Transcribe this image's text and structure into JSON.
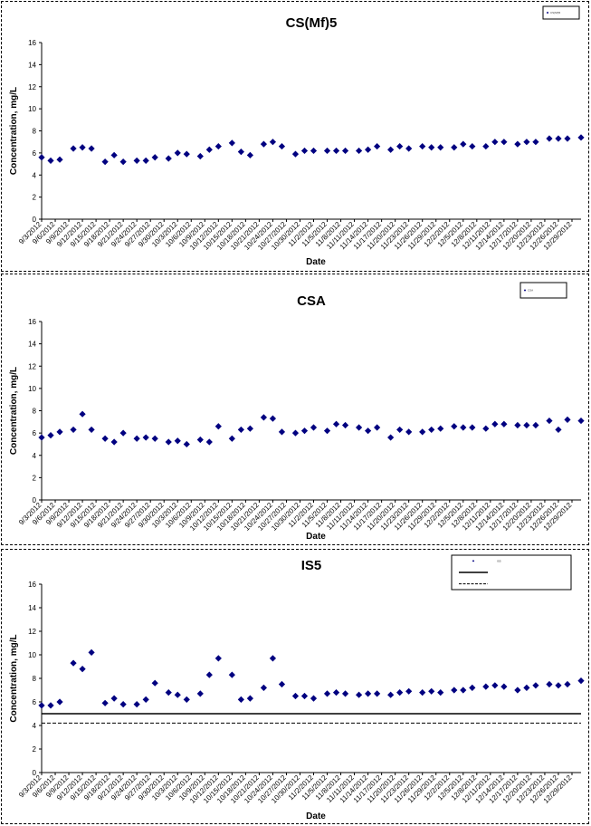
{
  "chart_data": [
    {
      "type": "scatter",
      "title": "CS(Mf)5",
      "xlabel": "Date",
      "ylabel": "Concentration, mg/L",
      "ylim": [
        0,
        16
      ],
      "yticks": [
        0,
        2,
        4,
        6,
        8,
        10,
        12,
        14,
        16
      ],
      "x_tick_labels": [
        "9/3/2012",
        "9/6/2012",
        "9/9/2012",
        "9/12/2012",
        "9/15/2012",
        "9/18/2012",
        "9/21/2012",
        "9/24/2012",
        "9/27/2012",
        "9/30/2012",
        "10/3/2012",
        "10/6/2012",
        "10/9/2012",
        "10/12/2012",
        "10/15/2012",
        "10/18/2012",
        "10/21/2012",
        "10/24/2012",
        "10/27/2012",
        "10/30/2012",
        "11/2/2012",
        "11/5/2012",
        "11/8/2012",
        "11/11/2012",
        "11/14/2012",
        "11/17/2012",
        "11/20/2012",
        "11/23/2012",
        "11/26/2012",
        "11/29/2012",
        "12/2/2012",
        "12/5/2012",
        "12/8/2012",
        "12/11/2012",
        "12/14/2012",
        "12/17/2012",
        "12/20/2012",
        "12/23/2012",
        "12/26/2012",
        "12/29/2012"
      ],
      "legend": {
        "position": "top-right",
        "entries": [
          {
            "marker": "diamond",
            "name": "CS(Mf)5"
          }
        ]
      },
      "grid": false,
      "series": [
        {
          "name": "CS(Mf)5",
          "marker": "diamond",
          "color": "#000080",
          "x": [
            "9/3/2012",
            "9/5/2012",
            "9/7/2012",
            "9/10/2012",
            "9/12/2012",
            "9/14/2012",
            "9/17/2012",
            "9/19/2012",
            "9/21/2012",
            "9/24/2012",
            "9/26/2012",
            "9/28/2012",
            "10/1/2012",
            "10/3/2012",
            "10/5/2012",
            "10/8/2012",
            "10/10/2012",
            "10/12/2012",
            "10/15/2012",
            "10/17/2012",
            "10/19/2012",
            "10/22/2012",
            "10/24/2012",
            "10/26/2012",
            "10/29/2012",
            "10/31/2012",
            "11/2/2012",
            "11/5/2012",
            "11/7/2012",
            "11/9/2012",
            "11/12/2012",
            "11/14/2012",
            "11/16/2012",
            "11/19/2012",
            "11/21/2012",
            "11/23/2012",
            "11/26/2012",
            "11/28/2012",
            "11/30/2012",
            "12/3/2012",
            "12/5/2012",
            "12/7/2012",
            "12/10/2012",
            "12/12/2012",
            "12/14/2012",
            "12/17/2012",
            "12/19/2012",
            "12/21/2012",
            "12/24/2012",
            "12/26/2012",
            "12/28/2012",
            "12/31/2012"
          ],
          "y": [
            5.6,
            5.3,
            5.4,
            6.4,
            6.5,
            6.4,
            5.2,
            5.8,
            5.2,
            5.3,
            5.3,
            5.6,
            5.5,
            6.0,
            5.9,
            5.7,
            6.3,
            6.6,
            6.9,
            6.1,
            5.8,
            6.8,
            7.0,
            6.6,
            5.9,
            6.2,
            6.2,
            6.2,
            6.2,
            6.2,
            6.2,
            6.3,
            6.6,
            6.3,
            6.6,
            6.4,
            6.6,
            6.5,
            6.5,
            6.5,
            6.8,
            6.6,
            6.6,
            7.0,
            7.0,
            6.8,
            7.0,
            7.0,
            7.3,
            7.3,
            7.3,
            7.4
          ]
        }
      ]
    },
    {
      "type": "scatter",
      "title": "CSA",
      "xlabel": "Date",
      "ylabel": "Concentration, mg/L",
      "ylim": [
        0,
        16
      ],
      "yticks": [
        0,
        2,
        4,
        6,
        8,
        10,
        12,
        14,
        16
      ],
      "x_tick_labels": [
        "9/3/2012",
        "9/6/2012",
        "9/9/2012",
        "9/12/2012",
        "9/15/2012",
        "9/18/2012",
        "9/21/2012",
        "9/24/2012",
        "9/27/2012",
        "9/30/2012",
        "10/3/2012",
        "10/6/2012",
        "10/9/2012",
        "10/12/2012",
        "10/15/2012",
        "10/18/2012",
        "10/21/2012",
        "10/24/2012",
        "10/27/2012",
        "10/30/2012",
        "11/2/2012",
        "11/5/2012",
        "11/8/2012",
        "11/11/2012",
        "11/14/2012",
        "11/17/2012",
        "11/20/2012",
        "11/23/2012",
        "11/26/2012",
        "11/29/2012",
        "12/2/2012",
        "12/5/2012",
        "12/8/2012",
        "12/11/2012",
        "12/14/2012",
        "12/17/2012",
        "12/20/2012",
        "12/23/2012",
        "12/26/2012",
        "12/29/2012"
      ],
      "legend": {
        "position": "top-right",
        "entries": [
          {
            "marker": "diamond",
            "name": "CSA"
          }
        ]
      },
      "grid": false,
      "series": [
        {
          "name": "CSA",
          "marker": "diamond",
          "color": "#000080",
          "x": [
            "9/3/2012",
            "9/5/2012",
            "9/7/2012",
            "9/10/2012",
            "9/12/2012",
            "9/14/2012",
            "9/17/2012",
            "9/19/2012",
            "9/21/2012",
            "9/24/2012",
            "9/26/2012",
            "9/28/2012",
            "10/1/2012",
            "10/3/2012",
            "10/5/2012",
            "10/8/2012",
            "10/10/2012",
            "10/12/2012",
            "10/15/2012",
            "10/17/2012",
            "10/19/2012",
            "10/22/2012",
            "10/24/2012",
            "10/26/2012",
            "10/29/2012",
            "10/31/2012",
            "11/2/2012",
            "11/5/2012",
            "11/7/2012",
            "11/9/2012",
            "11/12/2012",
            "11/14/2012",
            "11/16/2012",
            "11/19/2012",
            "11/21/2012",
            "11/23/2012",
            "11/26/2012",
            "11/28/2012",
            "11/30/2012",
            "12/3/2012",
            "12/5/2012",
            "12/7/2012",
            "12/10/2012",
            "12/12/2012",
            "12/14/2012",
            "12/17/2012",
            "12/19/2012",
            "12/21/2012",
            "12/24/2012",
            "12/26/2012",
            "12/28/2012",
            "12/31/2012"
          ],
          "y": [
            5.6,
            5.8,
            6.1,
            6.3,
            7.7,
            6.3,
            5.5,
            5.2,
            6.0,
            5.5,
            5.6,
            5.5,
            5.2,
            5.3,
            5.0,
            5.4,
            5.2,
            6.6,
            5.5,
            6.3,
            6.4,
            7.4,
            7.3,
            6.1,
            6.0,
            6.2,
            6.5,
            6.2,
            6.8,
            6.7,
            6.5,
            6.2,
            6.5,
            5.6,
            6.3,
            6.1,
            6.1,
            6.3,
            6.4,
            6.6,
            6.5,
            6.5,
            6.4,
            6.8,
            6.8,
            6.7,
            6.7,
            6.7,
            7.1,
            6.3,
            7.2,
            7.1
          ]
        }
      ]
    },
    {
      "type": "scatter",
      "title": "IS5",
      "xlabel": "Date",
      "ylabel": "Concentration, mg/L",
      "ylim": [
        0,
        16
      ],
      "yticks": [
        0,
        2,
        4,
        6,
        8,
        10,
        12,
        14,
        16
      ],
      "x_tick_labels": [
        "9/3/2012",
        "9/6/2012",
        "9/9/2012",
        "9/12/2012",
        "9/15/2012",
        "9/18/2012",
        "9/21/2012",
        "9/24/2012",
        "9/27/2012",
        "9/30/2012",
        "10/3/2012",
        "10/6/2012",
        "10/9/2012",
        "10/12/2012",
        "10/15/2012",
        "10/18/2012",
        "10/21/2012",
        "10/24/2012",
        "10/27/2012",
        "10/30/2012",
        "11/2/2012",
        "11/5/2012",
        "11/8/2012",
        "11/11/2012",
        "11/14/2012",
        "11/17/2012",
        "11/20/2012",
        "11/23/2012",
        "11/26/2012",
        "11/29/2012",
        "12/2/2012",
        "12/5/2012",
        "12/8/2012",
        "12/11/2012",
        "12/14/2012",
        "12/17/2012",
        "12/20/2012",
        "12/23/2012",
        "12/26/2012",
        "12/29/2012"
      ],
      "legend": {
        "position": "top-right",
        "entries": [
          {
            "marker": "diamond",
            "name": "IS5"
          },
          {
            "marker": "solid-line",
            "name": ""
          },
          {
            "marker": "dashed-line",
            "name": ""
          }
        ]
      },
      "grid": false,
      "reference_lines": [
        {
          "style": "solid",
          "y": 5.0
        },
        {
          "style": "dashed",
          "y": 4.2
        }
      ],
      "series": [
        {
          "name": "IS5",
          "marker": "diamond",
          "color": "#000080",
          "x": [
            "9/3/2012",
            "9/5/2012",
            "9/7/2012",
            "9/10/2012",
            "9/12/2012",
            "9/14/2012",
            "9/17/2012",
            "9/19/2012",
            "9/21/2012",
            "9/24/2012",
            "9/26/2012",
            "9/28/2012",
            "10/1/2012",
            "10/3/2012",
            "10/5/2012",
            "10/8/2012",
            "10/10/2012",
            "10/12/2012",
            "10/15/2012",
            "10/17/2012",
            "10/19/2012",
            "10/22/2012",
            "10/24/2012",
            "10/26/2012",
            "10/29/2012",
            "10/31/2012",
            "11/2/2012",
            "11/5/2012",
            "11/7/2012",
            "11/9/2012",
            "11/12/2012",
            "11/14/2012",
            "11/16/2012",
            "11/19/2012",
            "11/21/2012",
            "11/23/2012",
            "11/26/2012",
            "11/28/2012",
            "11/30/2012",
            "12/3/2012",
            "12/5/2012",
            "12/7/2012",
            "12/10/2012",
            "12/12/2012",
            "12/14/2012",
            "12/17/2012",
            "12/19/2012",
            "12/21/2012",
            "12/24/2012",
            "12/26/2012",
            "12/28/2012",
            "12/31/2012"
          ],
          "y": [
            5.7,
            5.7,
            6.0,
            9.3,
            8.8,
            10.2,
            5.9,
            6.3,
            5.8,
            5.8,
            6.2,
            7.6,
            6.8,
            6.6,
            6.2,
            6.7,
            8.3,
            9.7,
            8.3,
            6.2,
            6.3,
            7.2,
            9.7,
            7.5,
            6.5,
            6.5,
            6.3,
            6.7,
            6.8,
            6.7,
            6.6,
            6.7,
            6.7,
            6.6,
            6.8,
            6.9,
            6.8,
            6.9,
            6.8,
            7.0,
            7.0,
            7.2,
            7.3,
            7.4,
            7.3,
            7.0,
            7.2,
            7.4,
            7.5,
            7.4,
            7.5,
            7.8
          ]
        }
      ]
    }
  ]
}
